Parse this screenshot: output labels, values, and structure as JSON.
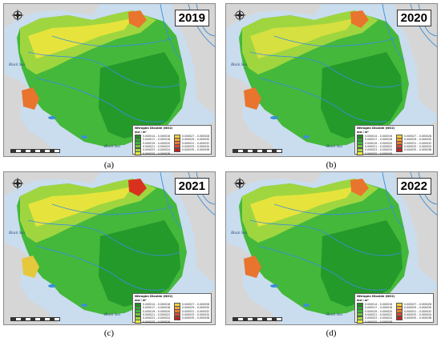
{
  "panels": [
    {
      "year": "2019",
      "caption": "(a)"
    },
    {
      "year": "2020",
      "caption": "(b)"
    },
    {
      "year": "2021",
      "caption": "(c)"
    },
    {
      "year": "2022",
      "caption": "(d)"
    }
  ],
  "sea_label": "Black Sea",
  "legend": {
    "title": "Nitrogen Dioxide (NO2)",
    "unit": "mol / m²",
    "items": [
      {
        "label": "0.000014 – 0.000016",
        "color": "#1f8f1f"
      },
      {
        "label": "0.000017 – 0.000018",
        "color": "#2fa52f"
      },
      {
        "label": "0.000019 – 0.000020",
        "color": "#3cb83a"
      },
      {
        "label": "0.000021 – 0.000022",
        "color": "#6cc83a"
      },
      {
        "label": "0.000023 – 0.000024",
        "color": "#a6d83a"
      },
      {
        "label": "0.000025 – 0.000026",
        "color": "#e6ec3a"
      },
      {
        "label": "0.000027 – 0.000028",
        "color": "#f4d23a"
      },
      {
        "label": "0.000029 – 0.000030",
        "color": "#f2a63a"
      },
      {
        "label": "0.000031 – 0.000032",
        "color": "#ea7a32"
      },
      {
        "label": "0.000033 – 0.000034",
        "color": "#de4a2a"
      },
      {
        "label": "0.000035 – 0.000038",
        "color": "#c81e1e"
      }
    ]
  },
  "colors": {
    "sea": "#c9ddee",
    "land_outside": "#d6d6d6",
    "river": "#3a8fd8",
    "hotspot": "#e8742e"
  }
}
